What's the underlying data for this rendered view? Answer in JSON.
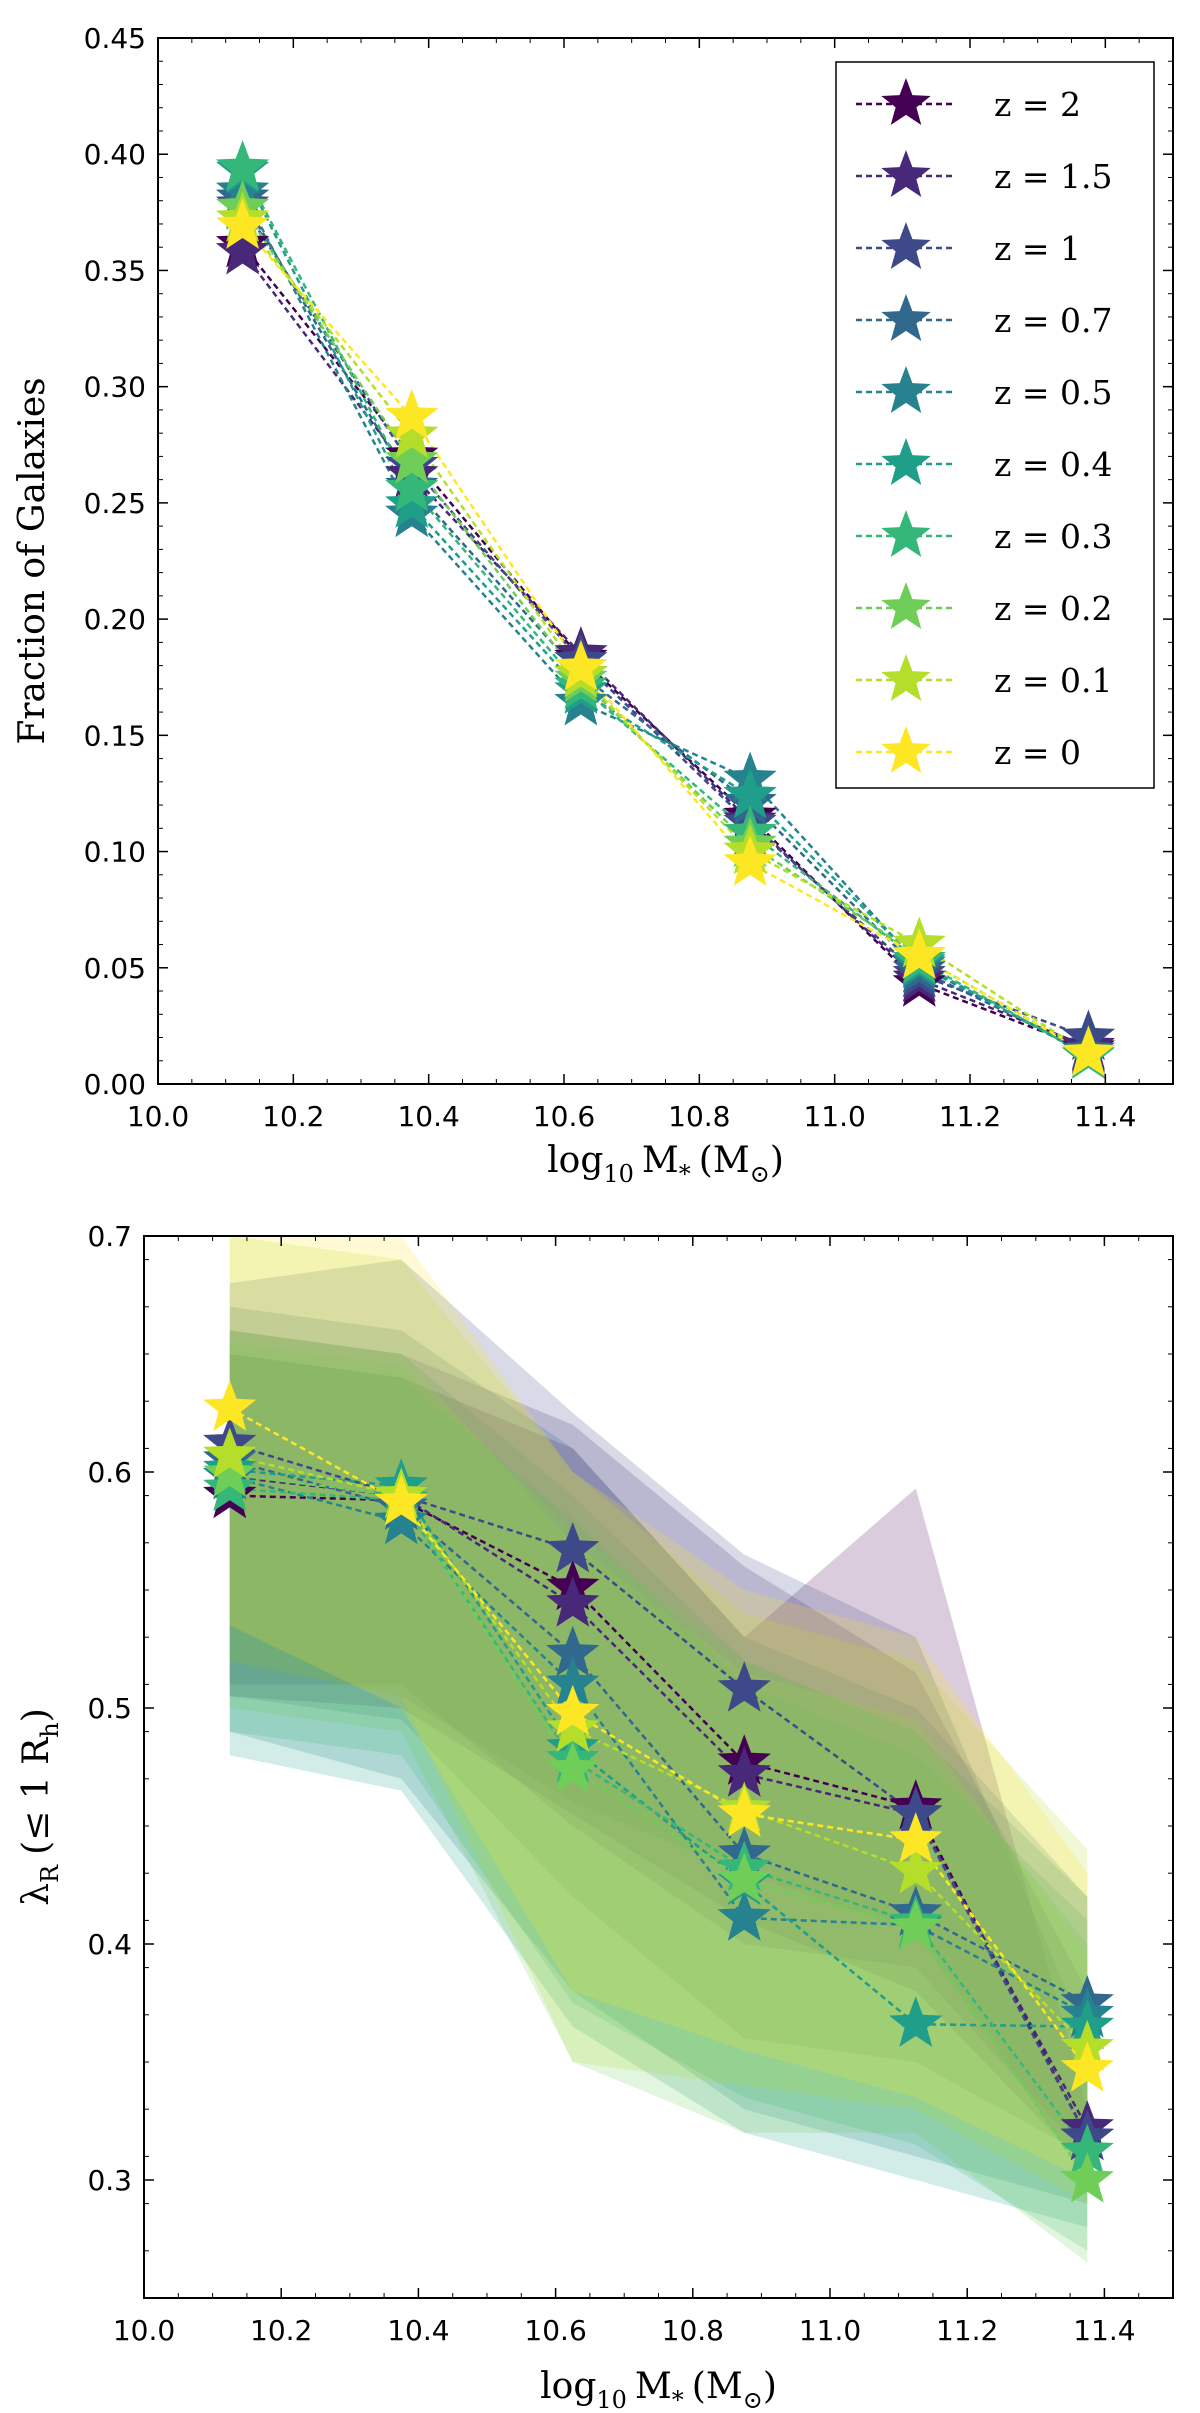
{
  "z_labels": [
    "z = 2",
    "z = 1.5",
    "z = 1",
    "z = 0.7",
    "z = 0.5",
    "z = 0.4",
    "z = 0.3",
    "z = 0.2",
    "z = 0.1",
    "z = 0"
  ],
  "colors": [
    "#440154",
    "#482878",
    "#3e4989",
    "#31688e",
    "#26828e",
    "#1f9e89",
    "#35b779",
    "#6ece58",
    "#b5de2b",
    "#fde725"
  ],
  "chart_data": [
    {
      "type": "line",
      "panel": "top",
      "xlabel_parts": {
        "base": "log",
        "sub": "10",
        "var": "M",
        "varsub": "*",
        "unit": "(M",
        "unitsub": "⊙",
        "close": ")"
      },
      "ylabel": "Fraction of Galaxies",
      "xlim": [
        10.0,
        11.5
      ],
      "ylim": [
        0.0,
        0.45
      ],
      "xticks": [
        "10.0",
        "10.2",
        "10.4",
        "10.6",
        "10.8",
        "11.0",
        "11.2",
        "11.4"
      ],
      "yticks": [
        "0.00",
        "0.05",
        "0.10",
        "0.15",
        "0.20",
        "0.25",
        "0.30",
        "0.35",
        "0.40",
        "0.45"
      ],
      "legend_position": "top-right",
      "x": [
        10.125,
        10.375,
        10.625,
        10.875,
        11.125,
        11.375
      ],
      "series": [
        {
          "name": "z = 2",
          "values": [
            0.361,
            0.27,
            0.183,
            0.115,
            0.043,
            0.015
          ]
        },
        {
          "name": "z = 1.5",
          "values": [
            0.358,
            0.262,
            0.185,
            0.113,
            0.045,
            0.016
          ]
        },
        {
          "name": "z = 1",
          "values": [
            0.378,
            0.266,
            0.182,
            0.112,
            0.047,
            0.02
          ]
        },
        {
          "name": "z = 0.7",
          "values": [
            0.381,
            0.257,
            0.176,
            0.121,
            0.049,
            0.014
          ]
        },
        {
          "name": "z = 0.5",
          "values": [
            0.384,
            0.245,
            0.164,
            0.131,
            0.051,
            0.013
          ]
        },
        {
          "name": "z = 0.4",
          "values": [
            0.393,
            0.249,
            0.169,
            0.124,
            0.052,
            0.012
          ]
        },
        {
          "name": "z = 0.3",
          "values": [
            0.394,
            0.256,
            0.171,
            0.108,
            0.053,
            0.012
          ]
        },
        {
          "name": "z = 0.2",
          "values": [
            0.377,
            0.268,
            0.174,
            0.103,
            0.055,
            0.013
          ]
        },
        {
          "name": "z = 0.1",
          "values": [
            0.372,
            0.279,
            0.176,
            0.1,
            0.06,
            0.013
          ]
        },
        {
          "name": "z = 0",
          "values": [
            0.369,
            0.287,
            0.179,
            0.095,
            0.055,
            0.013
          ]
        }
      ]
    },
    {
      "type": "line",
      "panel": "bottom",
      "xlabel_parts": {
        "base": "log",
        "sub": "10",
        "var": "M",
        "varsub": "*",
        "unit": "(M",
        "unitsub": "⊙",
        "close": ")"
      },
      "ylabel_parts": {
        "var": "λ",
        "sub": "R",
        "open": "(≤ 1 R",
        "rsub": "h",
        "close": ")"
      },
      "xlim": [
        10.0,
        11.5
      ],
      "ylim": [
        0.25,
        0.7
      ],
      "xticks": [
        "10.0",
        "10.2",
        "10.4",
        "10.6",
        "10.8",
        "11.0",
        "11.2",
        "11.4"
      ],
      "yticks": [
        "0.3",
        "0.4",
        "0.5",
        "0.6",
        "0.7"
      ],
      "x_bands": [
        10.125,
        10.375,
        10.625,
        10.875,
        11.125,
        11.375
      ],
      "x": [
        10.125,
        10.375,
        10.625,
        10.875,
        11.125,
        11.375
      ],
      "series": [
        {
          "name": "z = 2",
          "values": [
            0.59,
            0.588,
            0.551,
            0.477,
            0.458,
            0.318
          ],
          "lower": [
            0.505,
            0.5,
            0.455,
            0.41,
            0.38,
            0.305
          ],
          "upper": [
            0.65,
            0.64,
            0.61,
            0.53,
            0.593,
            0.33
          ]
        },
        {
          "name": "z = 1.5",
          "values": [
            0.598,
            0.59,
            0.544,
            0.472,
            0.455,
            0.322
          ],
          "lower": [
            0.51,
            0.51,
            0.45,
            0.4,
            0.39,
            0.31
          ],
          "upper": [
            0.66,
            0.65,
            0.62,
            0.56,
            0.515,
            0.38
          ]
        },
        {
          "name": "z = 1",
          "values": [
            0.612,
            0.59,
            0.567,
            0.508,
            0.455,
            0.318
          ],
          "lower": [
            0.52,
            0.505,
            0.46,
            0.43,
            0.405,
            0.3
          ],
          "upper": [
            0.68,
            0.69,
            0.625,
            0.565,
            0.53,
            0.36
          ]
        },
        {
          "name": "z = 0.7",
          "values": [
            0.605,
            0.585,
            0.523,
            0.438,
            0.413,
            0.375
          ],
          "lower": [
            0.505,
            0.495,
            0.42,
            0.36,
            0.35,
            0.31
          ],
          "upper": [
            0.67,
            0.66,
            0.61,
            0.53,
            0.5,
            0.42
          ]
        },
        {
          "name": "z = 0.5",
          "values": [
            0.598,
            0.579,
            0.51,
            0.411,
            0.408,
            0.37
          ],
          "lower": [
            0.49,
            0.47,
            0.38,
            0.33,
            0.31,
            0.29
          ],
          "upper": [
            0.66,
            0.65,
            0.59,
            0.52,
            0.49,
            0.42
          ]
        },
        {
          "name": "z = 0.4",
          "values": [
            0.601,
            0.594,
            0.483,
            0.426,
            0.366,
            0.365
          ],
          "lower": [
            0.48,
            0.465,
            0.365,
            0.32,
            0.3,
            0.28
          ],
          "upper": [
            0.65,
            0.64,
            0.58,
            0.51,
            0.48,
            0.41
          ]
        },
        {
          "name": "z = 0.3",
          "values": [
            0.593,
            0.588,
            0.478,
            0.432,
            0.409,
            0.312
          ],
          "lower": [
            0.49,
            0.48,
            0.375,
            0.335,
            0.315,
            0.27
          ],
          "upper": [
            0.655,
            0.645,
            0.575,
            0.52,
            0.49,
            0.4
          ]
        },
        {
          "name": "z = 0.2",
          "values": [
            0.599,
            0.59,
            0.474,
            0.427,
            0.407,
            0.3
          ],
          "lower": [
            0.5,
            0.49,
            0.35,
            0.32,
            0.32,
            0.265
          ],
          "upper": [
            0.66,
            0.65,
            0.57,
            0.515,
            0.495,
            0.395
          ]
        },
        {
          "name": "z = 0.1",
          "values": [
            0.607,
            0.59,
            0.491,
            0.457,
            0.431,
            0.356
          ],
          "lower": [
            0.52,
            0.505,
            0.35,
            0.34,
            0.33,
            0.29
          ],
          "upper": [
            0.7,
            0.69,
            0.6,
            0.54,
            0.52,
            0.44
          ]
        },
        {
          "name": "z = 0",
          "values": [
            0.627,
            0.587,
            0.498,
            0.455,
            0.444,
            0.347
          ],
          "lower": [
            0.535,
            0.5,
            0.38,
            0.355,
            0.335,
            0.3
          ],
          "upper": [
            0.7,
            0.7,
            0.6,
            0.55,
            0.53,
            0.43
          ]
        }
      ]
    }
  ]
}
